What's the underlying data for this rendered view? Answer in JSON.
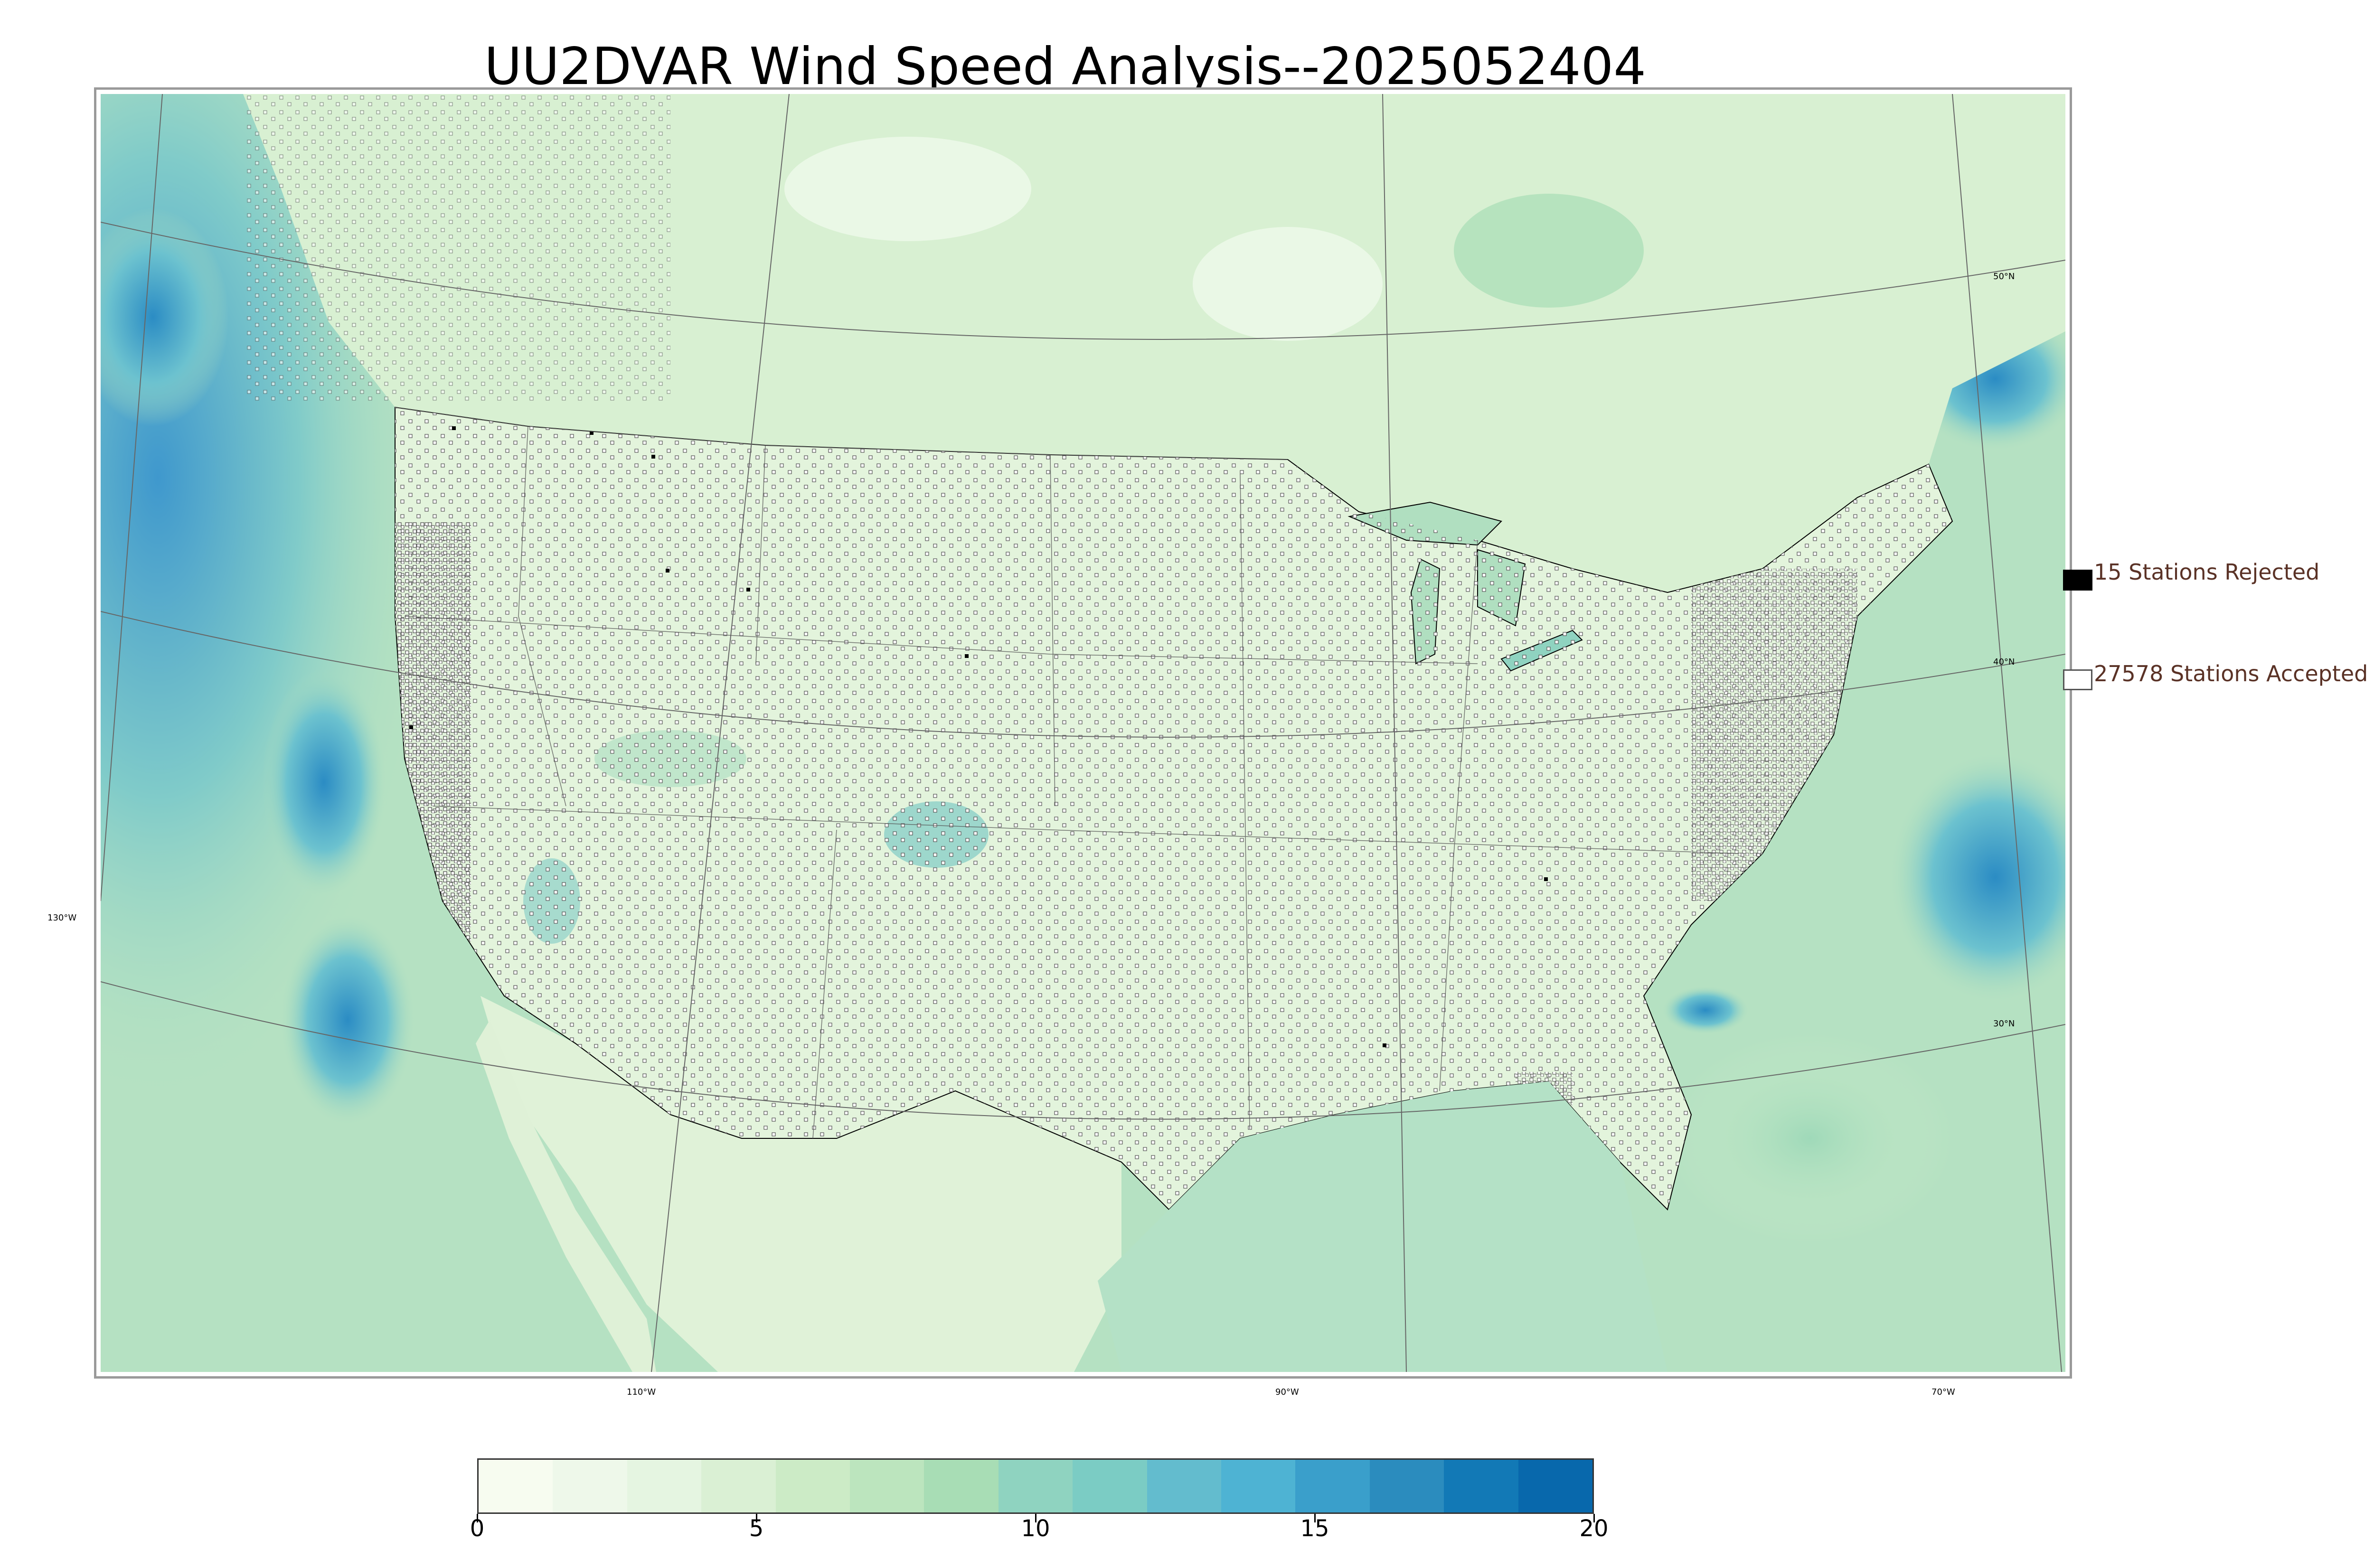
{
  "title": "UU2DVAR Wind Speed Analysis--2025052404",
  "map": {
    "longitude_labels": [
      "130°W",
      "110°W",
      "90°W",
      "70°W"
    ],
    "latitude_labels": [
      "50°N",
      "40°N",
      "30°N"
    ],
    "colors": {
      "land_base": "#e2f4dc",
      "ocean_base": "#b3e0c0",
      "strong_wind": "#2b8cc4",
      "coastline": "#000000",
      "borders": "#555555",
      "station_fill": "#ffffff",
      "station_edge": "#555555",
      "rejected_fill": "#000000"
    }
  },
  "legend": {
    "rejected_label": "15 Stations Rejected",
    "accepted_label": "27578 Stations Accepted"
  },
  "colorbar": {
    "ticks": [
      "0",
      "5",
      "10",
      "15",
      "20"
    ],
    "min": 0,
    "max": 20,
    "colors": [
      "#f7fcf0",
      "#eef8ea",
      "#e5f5e1",
      "#daf0d4",
      "#ccebc6",
      "#bce5be",
      "#a8ddb5",
      "#8fd3c0",
      "#7bccc4",
      "#63bcce",
      "#4eb3d3",
      "#3a9fcb",
      "#2b8cbe",
      "#1279b6",
      "#0868ac"
    ]
  }
}
